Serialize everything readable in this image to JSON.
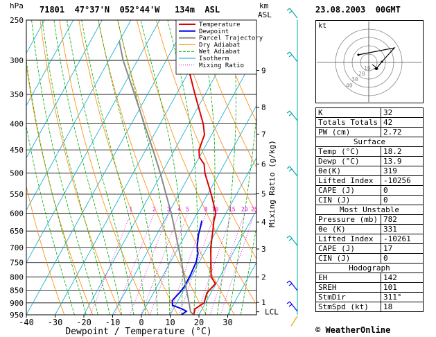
{
  "header": {
    "hpa_unit": "hPa",
    "station": "71801  47°37'N  052°44'W   134m  ASL",
    "km_label": "km",
    "asl_label": "ASL",
    "datetime": "23.08.2003  00GMT"
  },
  "legend": [
    {
      "label": "Temperature",
      "color": "#dd0000"
    },
    {
      "label": "Dewpoint",
      "color": "#0000ee"
    },
    {
      "label": "Parcel Trajectory",
      "color": "#888888"
    },
    {
      "label": "Dry Adiabat",
      "color": "#ff8800"
    },
    {
      "label": "Wet Adiabat",
      "color": "#00aa00"
    },
    {
      "label": "Isotherm",
      "color": "#00aacc"
    },
    {
      "label": "Mixing Ratio",
      "color": "#dd00dd"
    }
  ],
  "chart_data": {
    "type": "line",
    "xlabel": "Dewpoint / Temperature (°C)",
    "ylabel": "hPa",
    "mixing_axis_label": "Mixing Ratio (g/kg)",
    "xlim": [
      -40,
      40
    ],
    "ylim": [
      950,
      250
    ],
    "pressure_levels": [
      250,
      300,
      350,
      400,
      450,
      500,
      550,
      600,
      650,
      700,
      750,
      800,
      850,
      900,
      950
    ],
    "temp_ticks": [
      -40,
      -30,
      -20,
      -10,
      0,
      10,
      20,
      30
    ],
    "km_ticks": [
      {
        "label": "9",
        "p": 314
      },
      {
        "label": "8",
        "p": 371
      },
      {
        "label": "7",
        "p": 419
      },
      {
        "label": "6",
        "p": 480
      },
      {
        "label": "5",
        "p": 549
      },
      {
        "label": "4",
        "p": 624
      },
      {
        "label": "3",
        "p": 705
      },
      {
        "label": "2",
        "p": 800
      },
      {
        "label": "1",
        "p": 898
      }
    ],
    "lcl": {
      "label": "LCL",
      "p": 937
    },
    "mixing_ratios": [
      "1",
      "2",
      "3",
      "4",
      "5",
      "8",
      "10",
      "15",
      "20",
      "25"
    ],
    "series": [
      {
        "name": "Temperature",
        "points": [
          [
            950,
            18.2
          ],
          [
            925,
            17.5
          ],
          [
            900,
            19.5
          ],
          [
            860,
            18.6
          ],
          [
            825,
            19.8
          ],
          [
            800,
            17.0
          ],
          [
            700,
            11.2
          ],
          [
            650,
            8.8
          ],
          [
            620,
            7.2
          ],
          [
            600,
            6.5
          ],
          [
            550,
            1.2
          ],
          [
            500,
            -5.0
          ],
          [
            480,
            -7.0
          ],
          [
            465,
            -10.0
          ],
          [
            450,
            -11.5
          ],
          [
            420,
            -12.5
          ],
          [
            400,
            -15.0
          ],
          [
            350,
            -23.5
          ],
          [
            300,
            -33.0
          ],
          [
            250,
            -43.5
          ]
        ]
      },
      {
        "name": "Dewpoint",
        "points": [
          [
            950,
            13.9
          ],
          [
            935,
            15.0
          ],
          [
            925,
            13.0
          ],
          [
            910,
            9.0
          ],
          [
            890,
            8.0
          ],
          [
            860,
            9.0
          ],
          [
            840,
            9.5
          ],
          [
            800,
            9.5
          ],
          [
            780,
            9.3
          ],
          [
            750,
            9.0
          ],
          [
            720,
            8.0
          ],
          [
            700,
            6.5
          ],
          [
            660,
            4.5
          ],
          [
            645,
            4.0
          ],
          [
            620,
            3.0
          ]
        ]
      },
      {
        "name": "Parcel Trajectory",
        "points": [
          [
            950,
            18.2
          ],
          [
            937,
            16.5
          ],
          [
            900,
            14.3
          ],
          [
            850,
            11.0
          ],
          [
            800,
            7.6
          ],
          [
            750,
            4.0
          ],
          [
            700,
            0.0
          ],
          [
            650,
            -4.3
          ],
          [
            600,
            -9.0
          ],
          [
            550,
            -14.5
          ],
          [
            500,
            -20.5
          ],
          [
            450,
            -27.5
          ],
          [
            400,
            -35.5
          ],
          [
            350,
            -44.5
          ],
          [
            300,
            -55.0
          ],
          [
            275,
            -60.0
          ]
        ]
      }
    ]
  },
  "hodograph": {
    "kt_label": "kt",
    "ring_labels": [
      "10",
      "20",
      "30",
      "40"
    ]
  },
  "indices": {
    "rows1": [
      {
        "label": "K",
        "value": "32"
      },
      {
        "label": "Totals Totals",
        "value": "42"
      },
      {
        "label": "PW (cm)",
        "value": "2.72"
      }
    ],
    "surface_title": "Surface",
    "surface": [
      {
        "label": "Temp (°C)",
        "value": "18.2"
      },
      {
        "label": "Dewp (°C)",
        "value": "13.9"
      },
      {
        "label": "θe(K)",
        "value": "319"
      },
      {
        "label": "Lifted Index",
        "value": "-10256"
      },
      {
        "label": "CAPE (J)",
        "value": "0"
      },
      {
        "label": "CIN (J)",
        "value": "0"
      }
    ],
    "unstable_title": "Most Unstable",
    "unstable": [
      {
        "label": "Pressure (mb)",
        "value": "782"
      },
      {
        "label": "θe (K)",
        "value": "331"
      },
      {
        "label": "Lifted Index",
        "value": "-10261"
      },
      {
        "label": "CAPE (J)",
        "value": "17"
      },
      {
        "label": "CIN (J)",
        "value": "0"
      }
    ],
    "hodo_title": "Hodograph",
    "hodo": [
      {
        "label": "EH",
        "value": "142"
      },
      {
        "label": "SREH",
        "value": "101"
      },
      {
        "label": "StmDir",
        "value": "311°"
      },
      {
        "label": "StmSpd (kt)",
        "value": "18"
      }
    ]
  },
  "footer": "© WeatherOnline"
}
